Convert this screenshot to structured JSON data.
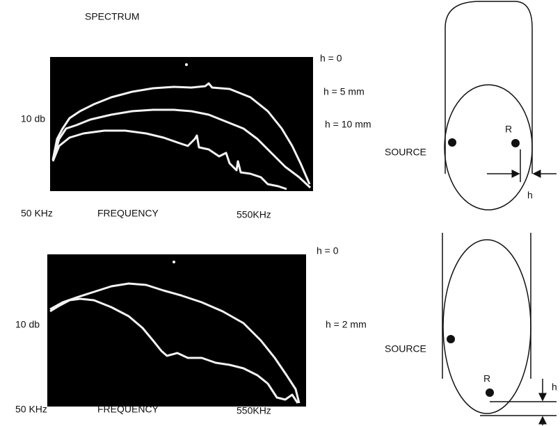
{
  "title": "SPECTRUM",
  "panels": [
    {
      "curve_labels": [
        "h = 0",
        "h = 5 mm",
        "h = 10 mm"
      ],
      "y_label": "10 db",
      "x_start": "50 KHz",
      "x_label": "FREQUENCY",
      "x_end": "550KHz"
    },
    {
      "curve_labels": [
        "h = 0",
        "h = 2 mm"
      ],
      "y_label": "10 db",
      "x_start": "50 KHz",
      "x_label": "FREQUENCY",
      "x_end": "550KHz"
    }
  ],
  "diagrams": [
    {
      "source": "SOURCE",
      "receiver": "R",
      "gap": "h"
    },
    {
      "source": "SOURCE",
      "receiver": "R",
      "gap": "h"
    }
  ]
}
